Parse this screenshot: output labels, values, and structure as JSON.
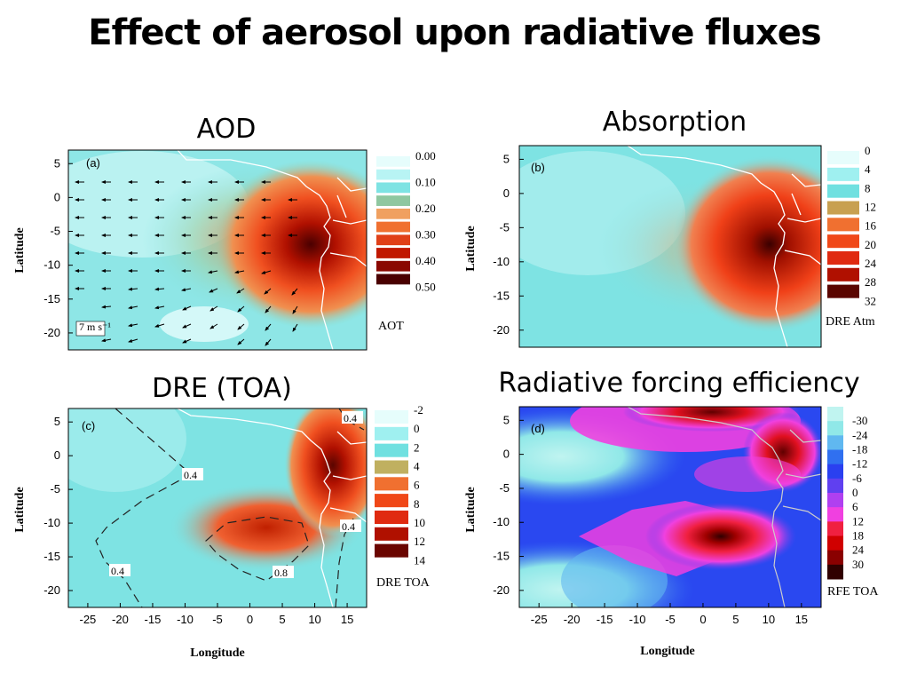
{
  "title": "Effect of aerosol upon radiative fluxes",
  "colors": {
    "background": "#ffffff",
    "sea": "#7ee3e3",
    "red": "#e23a12",
    "darkred": "#5a0a00",
    "blue": "#2a4bf0",
    "magenta": "#f032e0"
  },
  "chart_data": [
    {
      "type": "heatmap",
      "title": "AOD",
      "panel_label": "(a)",
      "xlabel": "",
      "ylabel": "Latitude",
      "xlim": [
        -25,
        18
      ],
      "ylim": [
        -22.5,
        7
      ],
      "yticks": [
        "5",
        "0",
        "-5",
        "-10",
        "-15",
        "-20"
      ],
      "xticks": [],
      "colorbar": {
        "label": "AOT",
        "levels": [
          "0.00",
          "0.10",
          "0.20",
          "0.30",
          "0.40",
          "0.50"
        ],
        "colors": [
          "#e6fdfc",
          "#b8f4f4",
          "#7ee3e3",
          "#8fc7a0",
          "#f0a060",
          "#f07030",
          "#e04018",
          "#c01800",
          "#8a0800",
          "#4a0000"
        ]
      },
      "annotation": "7 m s⁻¹",
      "max_location": {
        "lon": 12,
        "lat": -7.5,
        "value": 0.5
      }
    },
    {
      "type": "heatmap",
      "title": "Absorption",
      "panel_label": "(b)",
      "xlabel": "",
      "ylabel": "Latitude",
      "xlim": [
        -25,
        18
      ],
      "ylim": [
        -22.5,
        7
      ],
      "yticks": [
        "5",
        "0",
        "-5",
        "-10",
        "-15",
        "-20"
      ],
      "xticks": [],
      "colorbar": {
        "label": "DRE Atm",
        "levels": [
          "0",
          "4",
          "8",
          "12",
          "16",
          "20",
          "24",
          "28",
          "32"
        ],
        "colors": [
          "#e6fdfc",
          "#9ff0f0",
          "#70e0e0",
          "#c8a050",
          "#f07030",
          "#f04818",
          "#e02a10",
          "#b01000",
          "#5a0500"
        ]
      },
      "max_location": {
        "lon": 12,
        "lat": -8,
        "value": 32
      }
    },
    {
      "type": "heatmap",
      "title": "DRE (TOA)",
      "panel_label": "(c)",
      "xlabel": "Longitude",
      "ylabel": "Latitude",
      "xlim": [
        -28,
        18
      ],
      "ylim": [
        -22.5,
        7
      ],
      "yticks": [
        "5",
        "0",
        "-5",
        "-10",
        "-15",
        "-20"
      ],
      "xticks": [
        "-25",
        "-20",
        "-15",
        "-10",
        "-5",
        "0",
        "5",
        "10",
        "15"
      ],
      "colorbar": {
        "label": "DRE TOA",
        "levels": [
          "-2",
          "0",
          "2",
          "4",
          "6",
          "8",
          "10",
          "12",
          "14"
        ],
        "colors": [
          "#e6fdfc",
          "#9ff0f0",
          "#70e0e0",
          "#c0b060",
          "#f07030",
          "#f04818",
          "#e02a10",
          "#b01000",
          "#6a0500"
        ]
      },
      "contour_labels": [
        "0.4",
        "0.4",
        "0.4",
        "0.4",
        "0.8"
      ],
      "max_location": {
        "lon": 12,
        "lat": -2,
        "value": 14
      }
    },
    {
      "type": "heatmap",
      "title": "Radiative forcing efficiency",
      "panel_label": "(d)",
      "xlabel": "Longitude",
      "ylabel": "Latitude",
      "xlim": [
        -28,
        18
      ],
      "ylim": [
        -22.5,
        7
      ],
      "yticks": [
        "5",
        "0",
        "-5",
        "-10",
        "-15",
        "-20"
      ],
      "xticks": [
        "-25",
        "-20",
        "-15",
        "-10",
        "-5",
        "0",
        "5",
        "10",
        "15"
      ],
      "colorbar": {
        "label": "RFE TOA",
        "levels": [
          "-30",
          "-24",
          "-18",
          "-12",
          "-6",
          "0",
          "6",
          "12",
          "18",
          "24",
          "30"
        ],
        "colors": [
          "#c0f4f0",
          "#90e8e8",
          "#60b8f0",
          "#3070f0",
          "#2a40f0",
          "#6040f0",
          "#b040f0",
          "#f040e0",
          "#f02040",
          "#d00000",
          "#8a0000",
          "#300000"
        ]
      },
      "max_location": {
        "lon": 2,
        "lat": -12.5,
        "value": 30
      }
    }
  ]
}
